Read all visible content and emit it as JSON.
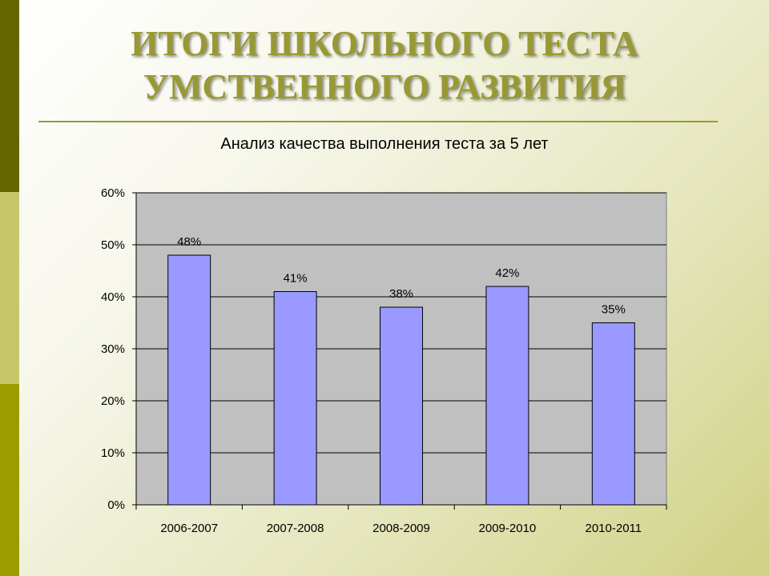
{
  "slide": {
    "title_line1": "ИТОГИ ШКОЛЬНОГО ТЕСТА",
    "title_line2": "УМСТВЕННОГО РАЗВИТИЯ"
  },
  "colors": {
    "bar": "#9999ff",
    "plot_area": "#c0c0c0",
    "title": "#999933",
    "accent_dark": "#666600"
  },
  "chart_data": {
    "type": "bar",
    "title": "Анализ качества выполнения теста за 5 лет",
    "categories": [
      "2006-2007",
      "2007-2008",
      "2008-2009",
      "2009-2010",
      "2010-2011"
    ],
    "values": [
      48,
      41,
      38,
      42,
      35
    ],
    "data_labels": [
      "48%",
      "41%",
      "38%",
      "42%",
      "35%"
    ],
    "y_ticks": [
      "0%",
      "10%",
      "20%",
      "30%",
      "40%",
      "50%",
      "60%"
    ],
    "ylim": [
      0,
      60
    ],
    "xlabel": "",
    "ylabel": "",
    "grid": true,
    "legend": "none"
  }
}
